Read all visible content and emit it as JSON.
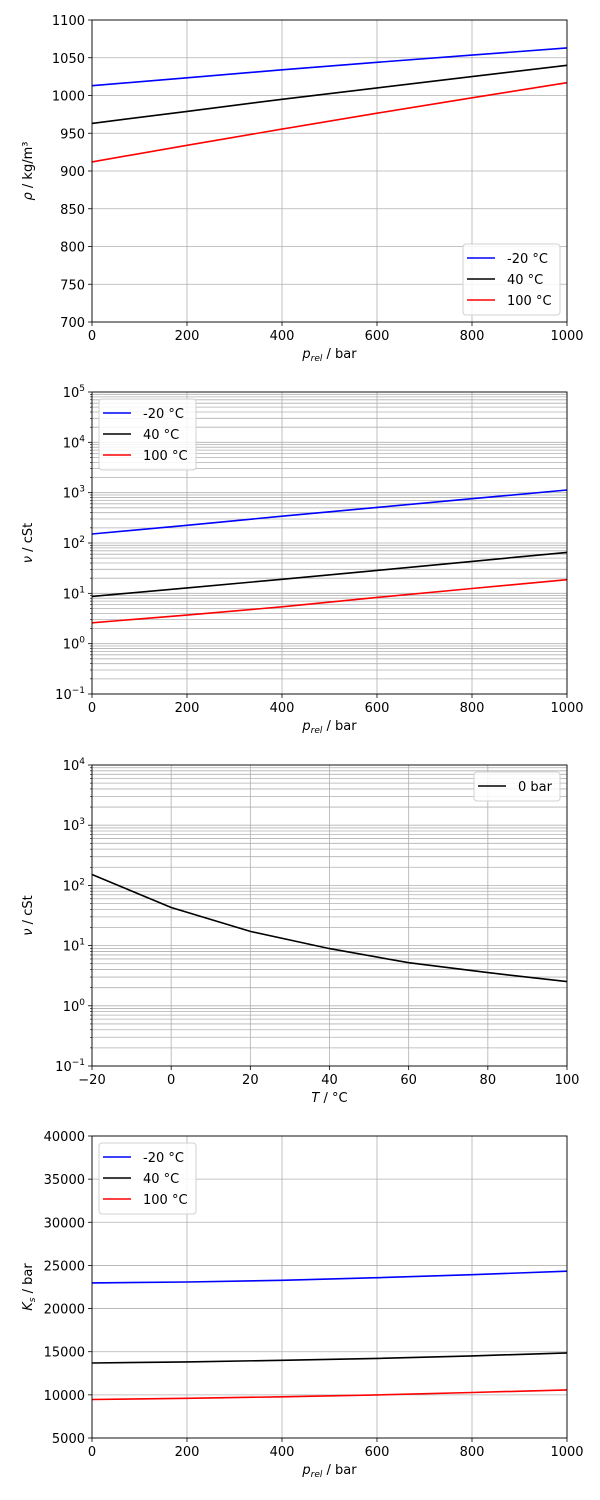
{
  "chart_data": [
    {
      "type": "line",
      "xlabel": {
        "symbol": "p",
        "subscript": "rel",
        "unit": " / bar"
      },
      "ylabel": {
        "symbol": "ρ",
        "subscript": "",
        "unit": " / kg/m³"
      },
      "xlim": [
        0,
        1000
      ],
      "ylim": [
        700,
        1100
      ],
      "yscale": "linear",
      "xticks": [
        0,
        200,
        400,
        600,
        800,
        1000
      ],
      "yticks": [
        700,
        750,
        800,
        850,
        900,
        950,
        1000,
        1050,
        1100
      ],
      "grid": true,
      "legend_position": "bottom-right",
      "x": [
        0,
        200,
        400,
        600,
        800,
        1000
      ],
      "series": [
        {
          "name": "-20 °C",
          "color": "#0000ff",
          "values": [
            1013,
            1023.5,
            1034,
            1044,
            1053.5,
            1063
          ]
        },
        {
          "name": "40 °C",
          "color": "#000000",
          "values": [
            963,
            979,
            995,
            1010,
            1025,
            1040
          ]
        },
        {
          "name": "100 °C",
          "color": "#ff0000",
          "values": [
            912,
            934,
            955.5,
            976.5,
            997,
            1017
          ]
        }
      ]
    },
    {
      "type": "line",
      "xlabel": {
        "symbol": "p",
        "subscript": "rel",
        "unit": " / bar"
      },
      "ylabel": {
        "symbol": "ν",
        "subscript": "",
        "unit": " / cSt"
      },
      "xlim": [
        0,
        1000
      ],
      "ylim": [
        0.1,
        100000
      ],
      "yscale": "log",
      "xticks": [
        0,
        200,
        400,
        600,
        800,
        1000
      ],
      "yticks_exponents": [
        -1,
        0,
        1,
        2,
        3,
        4,
        5
      ],
      "grid": true,
      "legend_position": "top-left",
      "x": [
        0,
        200,
        400,
        600,
        800,
        1000
      ],
      "series": [
        {
          "name": "-20 °C",
          "color": "#0000ff",
          "values": [
            151,
            225,
            340,
            510,
            760,
            1130
          ]
        },
        {
          "name": "40 °C",
          "color": "#000000",
          "values": [
            8.7,
            12.8,
            19,
            28.5,
            43,
            65
          ]
        },
        {
          "name": "100 °C",
          "color": "#ff0000",
          "values": [
            2.6,
            3.7,
            5.4,
            8.3,
            12.5,
            18.7
          ]
        }
      ]
    },
    {
      "type": "line",
      "xlabel": {
        "symbol": "T",
        "subscript": "",
        "unit": " / °C"
      },
      "ylabel": {
        "symbol": "ν",
        "subscript": "",
        "unit": " / cSt"
      },
      "xlim": [
        -20,
        100
      ],
      "ylim": [
        0.1,
        10000
      ],
      "yscale": "log",
      "xticks": [
        -20,
        0,
        20,
        40,
        60,
        80,
        100
      ],
      "yticks_exponents": [
        -1,
        0,
        1,
        2,
        3,
        4
      ],
      "grid": true,
      "legend_position": "top-right",
      "x": [
        -20,
        0,
        20,
        40,
        60,
        80,
        100
      ],
      "series": [
        {
          "name": "0 bar",
          "color": "#000000",
          "values": [
            152,
            43,
            17.2,
            8.9,
            5.2,
            3.56,
            2.52
          ]
        }
      ]
    },
    {
      "type": "line",
      "xlabel": {
        "symbol": "p",
        "subscript": "rel",
        "unit": " / bar"
      },
      "ylabel": {
        "symbol": "K",
        "subscript": "s",
        "unit": " / bar"
      },
      "xlim": [
        0,
        1000
      ],
      "ylim": [
        5000,
        40000
      ],
      "yscale": "linear",
      "xticks": [
        0,
        200,
        400,
        600,
        800,
        1000
      ],
      "yticks": [
        5000,
        10000,
        15000,
        20000,
        25000,
        30000,
        35000,
        40000
      ],
      "grid": true,
      "legend_position": "top-left",
      "x": [
        0,
        200,
        400,
        600,
        800,
        1000
      ],
      "series": [
        {
          "name": "-20 °C",
          "color": "#0000ff",
          "values": [
            22970,
            23080,
            23280,
            23580,
            23930,
            24330
          ]
        },
        {
          "name": "40 °C",
          "color": "#000000",
          "values": [
            13690,
            13820,
            14000,
            14230,
            14520,
            14860
          ]
        },
        {
          "name": "100 °C",
          "color": "#ff0000",
          "values": [
            9460,
            9600,
            9780,
            10000,
            10270,
            10580
          ]
        }
      ]
    }
  ]
}
